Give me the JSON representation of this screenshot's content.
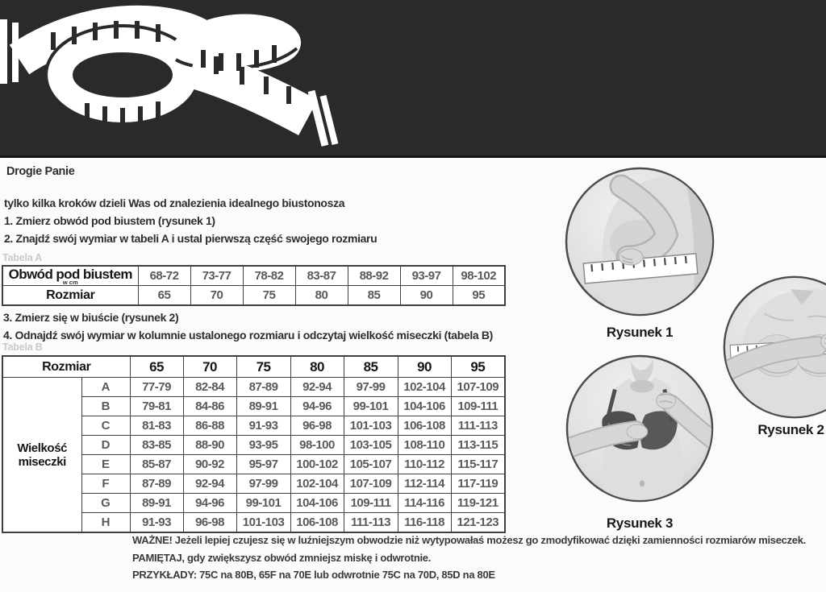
{
  "colors": {
    "banner_bg": "#2a2a2a",
    "page_bg": "#fbfbfb",
    "table_border": "#3f3f3f",
    "value_text": "#5a5a5a",
    "caption_gray": "#c9c9c9"
  },
  "intro": {
    "title": "Drogie Panie",
    "line1": "tylko kilka kroków dzieli Was od znalezienia idealnego biustonosza",
    "step1": "1. Zmierz obwód pod biustem (rysunek 1)",
    "step2": "2. Znajdź swój wymiar w tabeli A i ustal pierwszą część swojego rozmiaru",
    "step3": "3. Zmierz się w biuście (rysunek 2)",
    "step4": "4. Odnajdź swój wymiar w kolumnie ustalonego rozmiaru i odczytaj wielkość miseczki (tabela B)"
  },
  "table_a": {
    "caption": "Tabela A",
    "rows": [
      {
        "label": "Obwód pod biustem",
        "sublabel": "w cm",
        "values": [
          "68-72",
          "73-77",
          "78-82",
          "83-87",
          "88-92",
          "93-97",
          "98-102"
        ]
      },
      {
        "label": "Rozmiar",
        "values": [
          "65",
          "70",
          "75",
          "80",
          "85",
          "90",
          "95"
        ]
      }
    ]
  },
  "table_b": {
    "caption": "Tabela B",
    "header_label": "Rozmiar",
    "sizes": [
      "65",
      "70",
      "75",
      "80",
      "85",
      "90",
      "95"
    ],
    "left_label": "Wielkość miseczki",
    "rows": [
      {
        "cup": "A",
        "values": [
          "77-79",
          "82-84",
          "87-89",
          "92-94",
          "97-99",
          "102-104",
          "107-109"
        ]
      },
      {
        "cup": "B",
        "values": [
          "79-81",
          "84-86",
          "89-91",
          "94-96",
          "99-101",
          "104-106",
          "109-111"
        ]
      },
      {
        "cup": "C",
        "values": [
          "81-83",
          "86-88",
          "91-93",
          "96-98",
          "101-103",
          "106-108",
          "111-113"
        ]
      },
      {
        "cup": "D",
        "values": [
          "83-85",
          "88-90",
          "93-95",
          "98-100",
          "103-105",
          "108-110",
          "113-115"
        ]
      },
      {
        "cup": "E",
        "values": [
          "85-87",
          "90-92",
          "95-97",
          "100-102",
          "105-107",
          "110-112",
          "115-117"
        ]
      },
      {
        "cup": "F",
        "values": [
          "87-89",
          "92-94",
          "97-99",
          "102-104",
          "107-109",
          "112-114",
          "117-119"
        ]
      },
      {
        "cup": "G",
        "values": [
          "89-91",
          "94-96",
          "99-101",
          "104-106",
          "109-111",
          "114-116",
          "119-121"
        ]
      },
      {
        "cup": "H",
        "values": [
          "91-93",
          "96-98",
          "101-103",
          "106-108",
          "111-113",
          "116-118",
          "121-123"
        ]
      }
    ]
  },
  "figures": [
    {
      "label": "Rysunek 1"
    },
    {
      "label": "Rysunek 2"
    },
    {
      "label": "Rysunek 3"
    }
  ],
  "notes": {
    "line1": "WAŻNE! Jeżeli lepiej czujesz się w luźniejszym obwodzie niż wytypowałaś możesz go zmodyfikować dzięki zamienności rozmiarów miseczek.",
    "line2": "PAMIĘTAJ, gdy zwiększysz obwód zmniejsz miskę i odwrotnie.",
    "line3": "PRZYKŁADY: 75C na 80B,  65F na 70E lub odwrotnie 75C na 70D, 85D na 80E"
  }
}
